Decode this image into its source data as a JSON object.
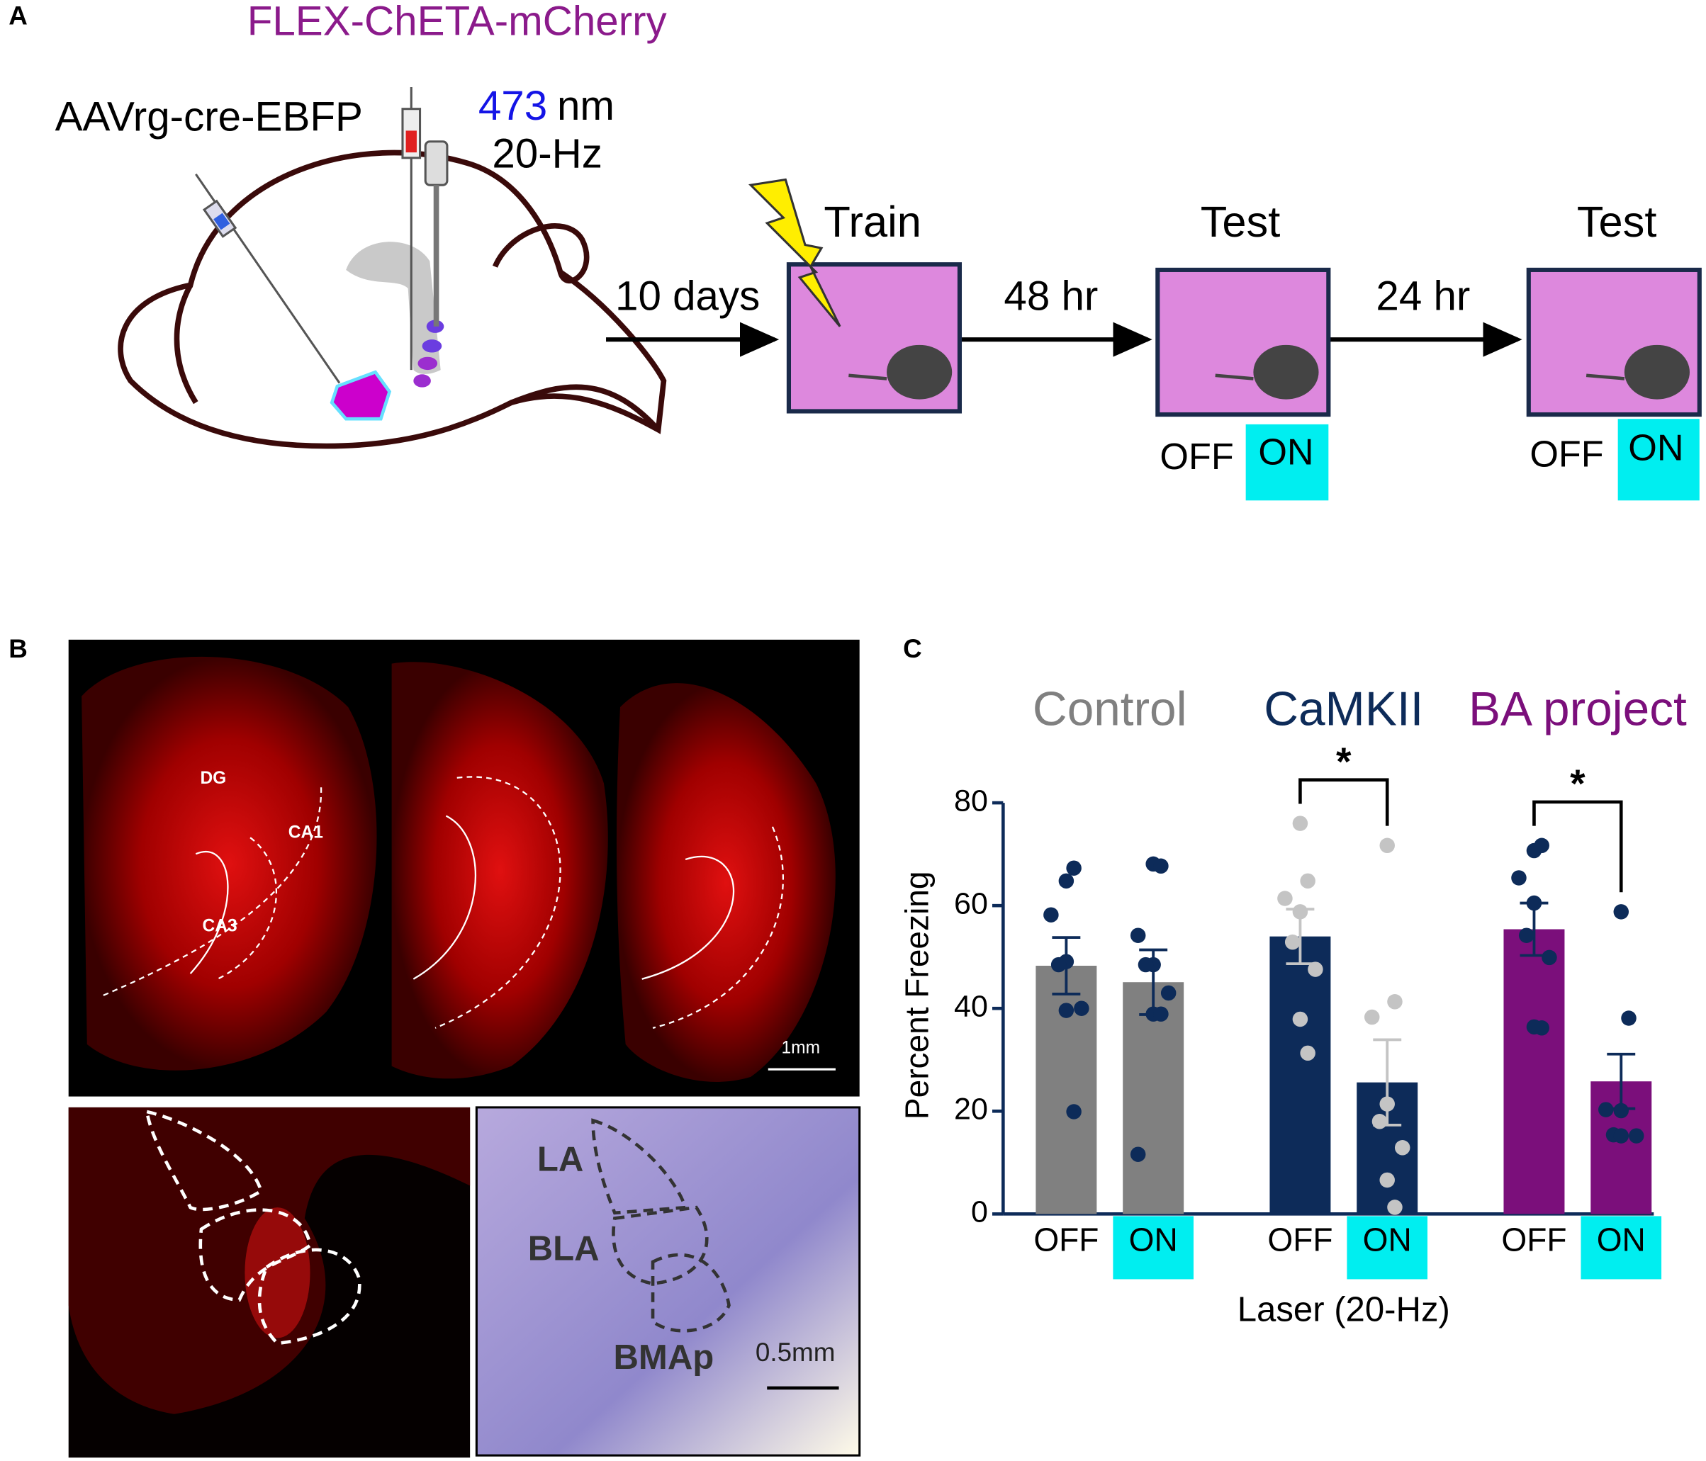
{
  "panel_a": {
    "label": "A",
    "virus_flex": "FLEX-ChETA-mCherry",
    "virus_retro": "AAVrg-cre-EBFP",
    "wavelength": "473",
    "wavelength_unit": "nm",
    "frequency": "20-Hz",
    "intervals": [
      "10 days",
      "48 hr",
      "24 hr"
    ],
    "sessions": [
      {
        "title": "Train"
      },
      {
        "title": "Test",
        "off": "OFF",
        "on": "ON"
      },
      {
        "title": "Test",
        "off": "OFF",
        "on": "ON"
      }
    ]
  },
  "panel_b": {
    "label": "B",
    "regions_top": [
      "DG",
      "CA1",
      "CA3"
    ],
    "scale_top": "1mm",
    "regions_bottom": [
      "LA",
      "BLA",
      "BMAp"
    ],
    "scale_bottom": "0.5mm"
  },
  "panel_c": {
    "label": "C"
  },
  "chart_data": {
    "type": "bar",
    "ylabel": "Percent Freezing",
    "xlabel": "Laser (20-Hz)",
    "ylim": [
      0,
      80
    ],
    "yticks": [
      0,
      20,
      40,
      60,
      80
    ],
    "series": [
      {
        "name": "Control",
        "color": "#808080",
        "point_color": "#0d2b59",
        "error_color": "#0d2b59",
        "conditions": [
          {
            "label": "OFF",
            "mean": 48.3,
            "sem": 5.5,
            "points": [
              64.8,
              67.3,
              58.2,
              49.1,
              48.5,
              40.0,
              39.6,
              19.9
            ]
          },
          {
            "label": "ON",
            "highlight": "#00eef0",
            "mean": 45.1,
            "sem": 6.3,
            "points": [
              68.1,
              67.7,
              54.2,
              48.5,
              48.5,
              43.0,
              38.9,
              38.9,
              11.6
            ]
          }
        ]
      },
      {
        "name": "CaMKII",
        "color": "#0d2b59",
        "point_color": "#c4c4c4",
        "error_color": "#c4c4c4",
        "significance": "*",
        "conditions": [
          {
            "label": "OFF",
            "mean": 54.0,
            "sem": 5.3,
            "points": [
              76.0,
              64.8,
              61.4,
              58.8,
              52.9,
              47.6,
              37.9,
              31.3
            ]
          },
          {
            "label": "ON",
            "highlight": "#00eef0",
            "mean": 25.6,
            "sem": 8.3,
            "points": [
              71.7,
              41.3,
              38.3,
              21.4,
              18.0,
              12.9,
              6.6,
              1.3
            ]
          }
        ]
      },
      {
        "name": "BA project",
        "color": "#7b0f7b",
        "point_color": "#0d2b59",
        "error_color": "#0d2b59",
        "significance": "*",
        "conditions": [
          {
            "label": "OFF",
            "mean": 55.4,
            "sem": 5.1,
            "points": [
              70.7,
              71.7,
              65.4,
              60.5,
              54.2,
              49.9,
              36.4,
              36.2
            ]
          },
          {
            "label": "ON",
            "highlight": "#00eef0",
            "mean": 25.8,
            "sem": 5.3,
            "points": [
              58.8,
              38.1,
              20.3,
              20.1,
              15.4,
              15.2,
              15.2
            ]
          }
        ]
      }
    ]
  }
}
